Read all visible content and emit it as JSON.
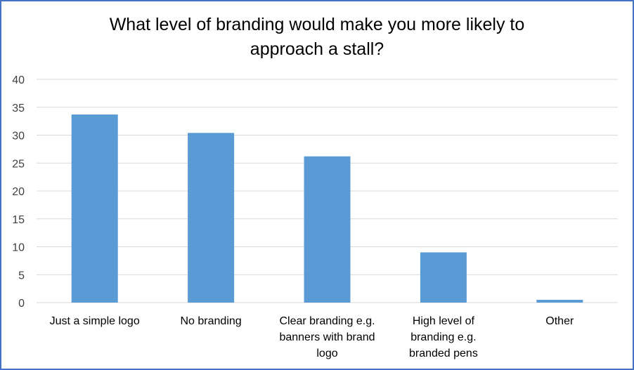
{
  "chart_data": {
    "type": "bar",
    "title_lines": [
      "What level of branding would make you more likely to",
      "approach a stall?"
    ],
    "categories": [
      [
        "Just a simple logo"
      ],
      [
        "No branding"
      ],
      [
        "Clear branding e.g.",
        "banners with brand",
        "logo"
      ],
      [
        "High level of",
        "branding e.g.",
        "branded pens"
      ],
      [
        "Other"
      ]
    ],
    "values": [
      33.7,
      30.4,
      26.2,
      9,
      0.5
    ],
    "ylim": [
      0,
      40
    ],
    "yticks": [
      0,
      5,
      10,
      15,
      20,
      25,
      30,
      35,
      40
    ],
    "grid": true,
    "legend": "none",
    "bar_color": "#5b9bd5"
  }
}
